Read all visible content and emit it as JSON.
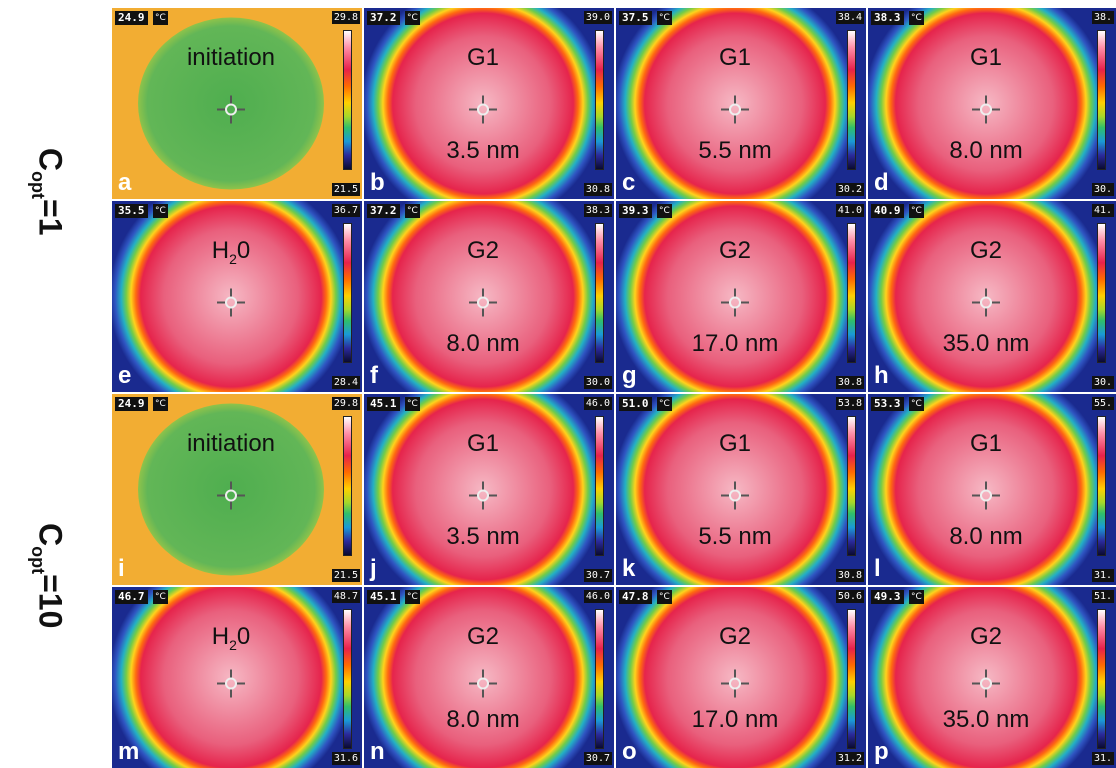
{
  "row_labels": [
    {
      "base": "C",
      "sub": "opt",
      "suffix": "=1"
    },
    {
      "base": "C",
      "sub": "opt",
      "suffix": "=10"
    }
  ],
  "temp_unit": "°C",
  "colors": {
    "background_blue": "#1a2a8f",
    "hot": "#e8385e",
    "initial_orange": "#f2ad33",
    "initial_green": "#5db553"
  },
  "panels": [
    {
      "letter": "a",
      "tmax": "24.9",
      "scale_max": "29.8",
      "scale_min": "21.5",
      "title_base": "initiation",
      "title_sub": "",
      "title_suffix": "",
      "size": "",
      "kind": "initiation"
    },
    {
      "letter": "b",
      "tmax": "37.2",
      "scale_max": "39.0",
      "scale_min": "30.8",
      "title_base": "G1",
      "title_sub": "",
      "title_suffix": "",
      "size": "3.5 nm",
      "kind": "circle"
    },
    {
      "letter": "c",
      "tmax": "37.5",
      "scale_max": "38.4",
      "scale_min": "30.2",
      "title_base": "G1",
      "title_sub": "",
      "title_suffix": "",
      "size": "5.5 nm",
      "kind": "circle"
    },
    {
      "letter": "d",
      "tmax": "38.3",
      "scale_max": "38.",
      "scale_min": "30.",
      "title_base": "G1",
      "title_sub": "",
      "title_suffix": "",
      "size": "8.0 nm",
      "kind": "circle"
    },
    {
      "letter": "e",
      "tmax": "35.5",
      "scale_max": "36.7",
      "scale_min": "28.4",
      "title_base": "H",
      "title_sub": "2",
      "title_suffix": "0",
      "size": "",
      "kind": "circle"
    },
    {
      "letter": "f",
      "tmax": "37.2",
      "scale_max": "38.3",
      "scale_min": "30.0",
      "title_base": "G2",
      "title_sub": "",
      "title_suffix": "",
      "size": "8.0 nm",
      "kind": "circle"
    },
    {
      "letter": "g",
      "tmax": "39.3",
      "scale_max": "41.0",
      "scale_min": "30.8",
      "title_base": "G2",
      "title_sub": "",
      "title_suffix": "",
      "size": "17.0 nm",
      "kind": "circle"
    },
    {
      "letter": "h",
      "tmax": "40.9",
      "scale_max": "41.",
      "scale_min": "30.",
      "title_base": "G2",
      "title_sub": "",
      "title_suffix": "",
      "size": "35.0 nm",
      "kind": "circle"
    },
    {
      "letter": "i",
      "tmax": "24.9",
      "scale_max": "29.8",
      "scale_min": "21.5",
      "title_base": "initiation",
      "title_sub": "",
      "title_suffix": "",
      "size": "",
      "kind": "initiation"
    },
    {
      "letter": "j",
      "tmax": "45.1",
      "scale_max": "46.0",
      "scale_min": "30.7",
      "title_base": "G1",
      "title_sub": "",
      "title_suffix": "",
      "size": "3.5 nm",
      "kind": "circle"
    },
    {
      "letter": "k",
      "tmax": "51.0",
      "scale_max": "53.8",
      "scale_min": "30.8",
      "title_base": "G1",
      "title_sub": "",
      "title_suffix": "",
      "size": "5.5 nm",
      "kind": "circle"
    },
    {
      "letter": "l",
      "tmax": "53.3",
      "scale_max": "55.",
      "scale_min": "31.",
      "title_base": "G1",
      "title_sub": "",
      "title_suffix": "",
      "size": "8.0 nm",
      "kind": "circle"
    },
    {
      "letter": "m",
      "tmax": "46.7",
      "scale_max": "48.7",
      "scale_min": "31.6",
      "title_base": "H",
      "title_sub": "2",
      "title_suffix": "0",
      "size": "",
      "kind": "circle"
    },
    {
      "letter": "n",
      "tmax": "45.1",
      "scale_max": "46.0",
      "scale_min": "30.7",
      "title_base": "G2",
      "title_sub": "",
      "title_suffix": "",
      "size": "8.0 nm",
      "kind": "circle"
    },
    {
      "letter": "o",
      "tmax": "47.8",
      "scale_max": "50.6",
      "scale_min": "31.2",
      "title_base": "G2",
      "title_sub": "",
      "title_suffix": "",
      "size": "17.0 nm",
      "kind": "circle"
    },
    {
      "letter": "p",
      "tmax": "49.3",
      "scale_max": "51.",
      "scale_min": "31.",
      "title_base": "G2",
      "title_sub": "",
      "title_suffix": "",
      "size": "35.0 nm",
      "kind": "circle"
    }
  ]
}
